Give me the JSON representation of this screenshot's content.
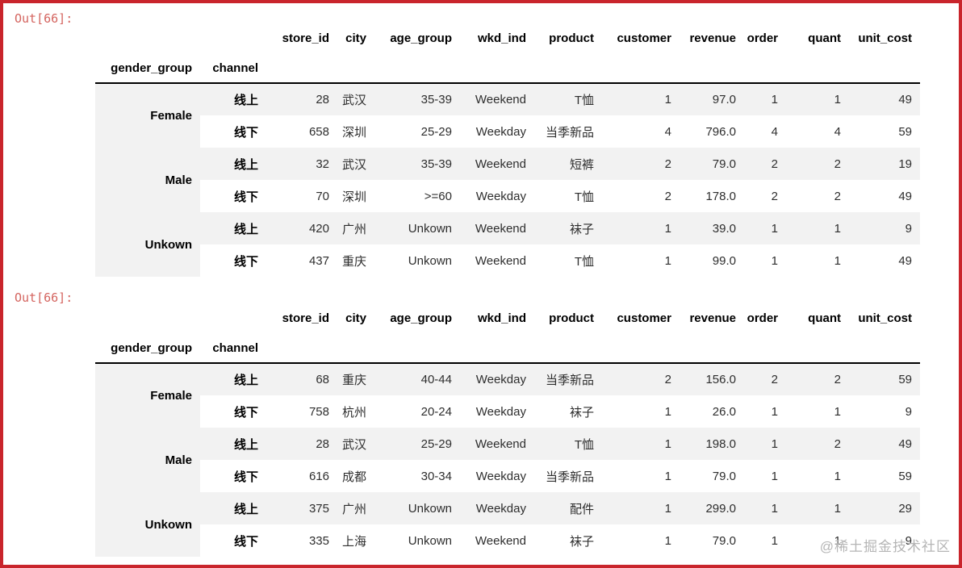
{
  "colors": {
    "frame_red": "#c9252c",
    "prompt_red": "#d4645f",
    "stripe_gray": "#f2f2f2",
    "watermark_gray": "#b5b5b5"
  },
  "watermark": "@稀土掘金技术社区",
  "outputs": [
    {
      "prompt": "Out[66]:",
      "table": {
        "index_names": [
          "gender_group",
          "channel"
        ],
        "columns": [
          "store_id",
          "city",
          "age_group",
          "wkd_ind",
          "product",
          "customer",
          "revenue",
          "order",
          "quant",
          "unit_cost"
        ],
        "groups": [
          {
            "gender": "Female",
            "rows": [
              {
                "channel": "线上",
                "cells": [
                  "28",
                  "武汉",
                  "35-39",
                  "Weekend",
                  "T恤",
                  "1",
                  "97.0",
                  "1",
                  "1",
                  "49"
                ]
              },
              {
                "channel": "线下",
                "cells": [
                  "658",
                  "深圳",
                  "25-29",
                  "Weekday",
                  "当季新品",
                  "4",
                  "796.0",
                  "4",
                  "4",
                  "59"
                ]
              }
            ]
          },
          {
            "gender": "Male",
            "rows": [
              {
                "channel": "线上",
                "cells": [
                  "32",
                  "武汉",
                  "35-39",
                  "Weekend",
                  "短裤",
                  "2",
                  "79.0",
                  "2",
                  "2",
                  "19"
                ]
              },
              {
                "channel": "线下",
                "cells": [
                  "70",
                  "深圳",
                  ">=60",
                  "Weekday",
                  "T恤",
                  "2",
                  "178.0",
                  "2",
                  "2",
                  "49"
                ]
              }
            ]
          },
          {
            "gender": "Unkown",
            "rows": [
              {
                "channel": "线上",
                "cells": [
                  "420",
                  "广州",
                  "Unkown",
                  "Weekend",
                  "袜子",
                  "1",
                  "39.0",
                  "1",
                  "1",
                  "9"
                ]
              },
              {
                "channel": "线下",
                "cells": [
                  "437",
                  "重庆",
                  "Unkown",
                  "Weekend",
                  "T恤",
                  "1",
                  "99.0",
                  "1",
                  "1",
                  "49"
                ]
              }
            ]
          }
        ]
      }
    },
    {
      "prompt": "Out[66]:",
      "table": {
        "index_names": [
          "gender_group",
          "channel"
        ],
        "columns": [
          "store_id",
          "city",
          "age_group",
          "wkd_ind",
          "product",
          "customer",
          "revenue",
          "order",
          "quant",
          "unit_cost"
        ],
        "groups": [
          {
            "gender": "Female",
            "rows": [
              {
                "channel": "线上",
                "cells": [
                  "68",
                  "重庆",
                  "40-44",
                  "Weekday",
                  "当季新品",
                  "2",
                  "156.0",
                  "2",
                  "2",
                  "59"
                ]
              },
              {
                "channel": "线下",
                "cells": [
                  "758",
                  "杭州",
                  "20-24",
                  "Weekday",
                  "袜子",
                  "1",
                  "26.0",
                  "1",
                  "1",
                  "9"
                ]
              }
            ]
          },
          {
            "gender": "Male",
            "rows": [
              {
                "channel": "线上",
                "cells": [
                  "28",
                  "武汉",
                  "25-29",
                  "Weekend",
                  "T恤",
                  "1",
                  "198.0",
                  "1",
                  "2",
                  "49"
                ]
              },
              {
                "channel": "线下",
                "cells": [
                  "616",
                  "成都",
                  "30-34",
                  "Weekday",
                  "当季新品",
                  "1",
                  "79.0",
                  "1",
                  "1",
                  "59"
                ]
              }
            ]
          },
          {
            "gender": "Unkown",
            "rows": [
              {
                "channel": "线上",
                "cells": [
                  "375",
                  "广州",
                  "Unkown",
                  "Weekday",
                  "配件",
                  "1",
                  "299.0",
                  "1",
                  "1",
                  "29"
                ]
              },
              {
                "channel": "线下",
                "cells": [
                  "335",
                  "上海",
                  "Unkown",
                  "Weekend",
                  "袜子",
                  "1",
                  "79.0",
                  "1",
                  "1",
                  "9"
                ]
              }
            ]
          }
        ]
      }
    }
  ]
}
